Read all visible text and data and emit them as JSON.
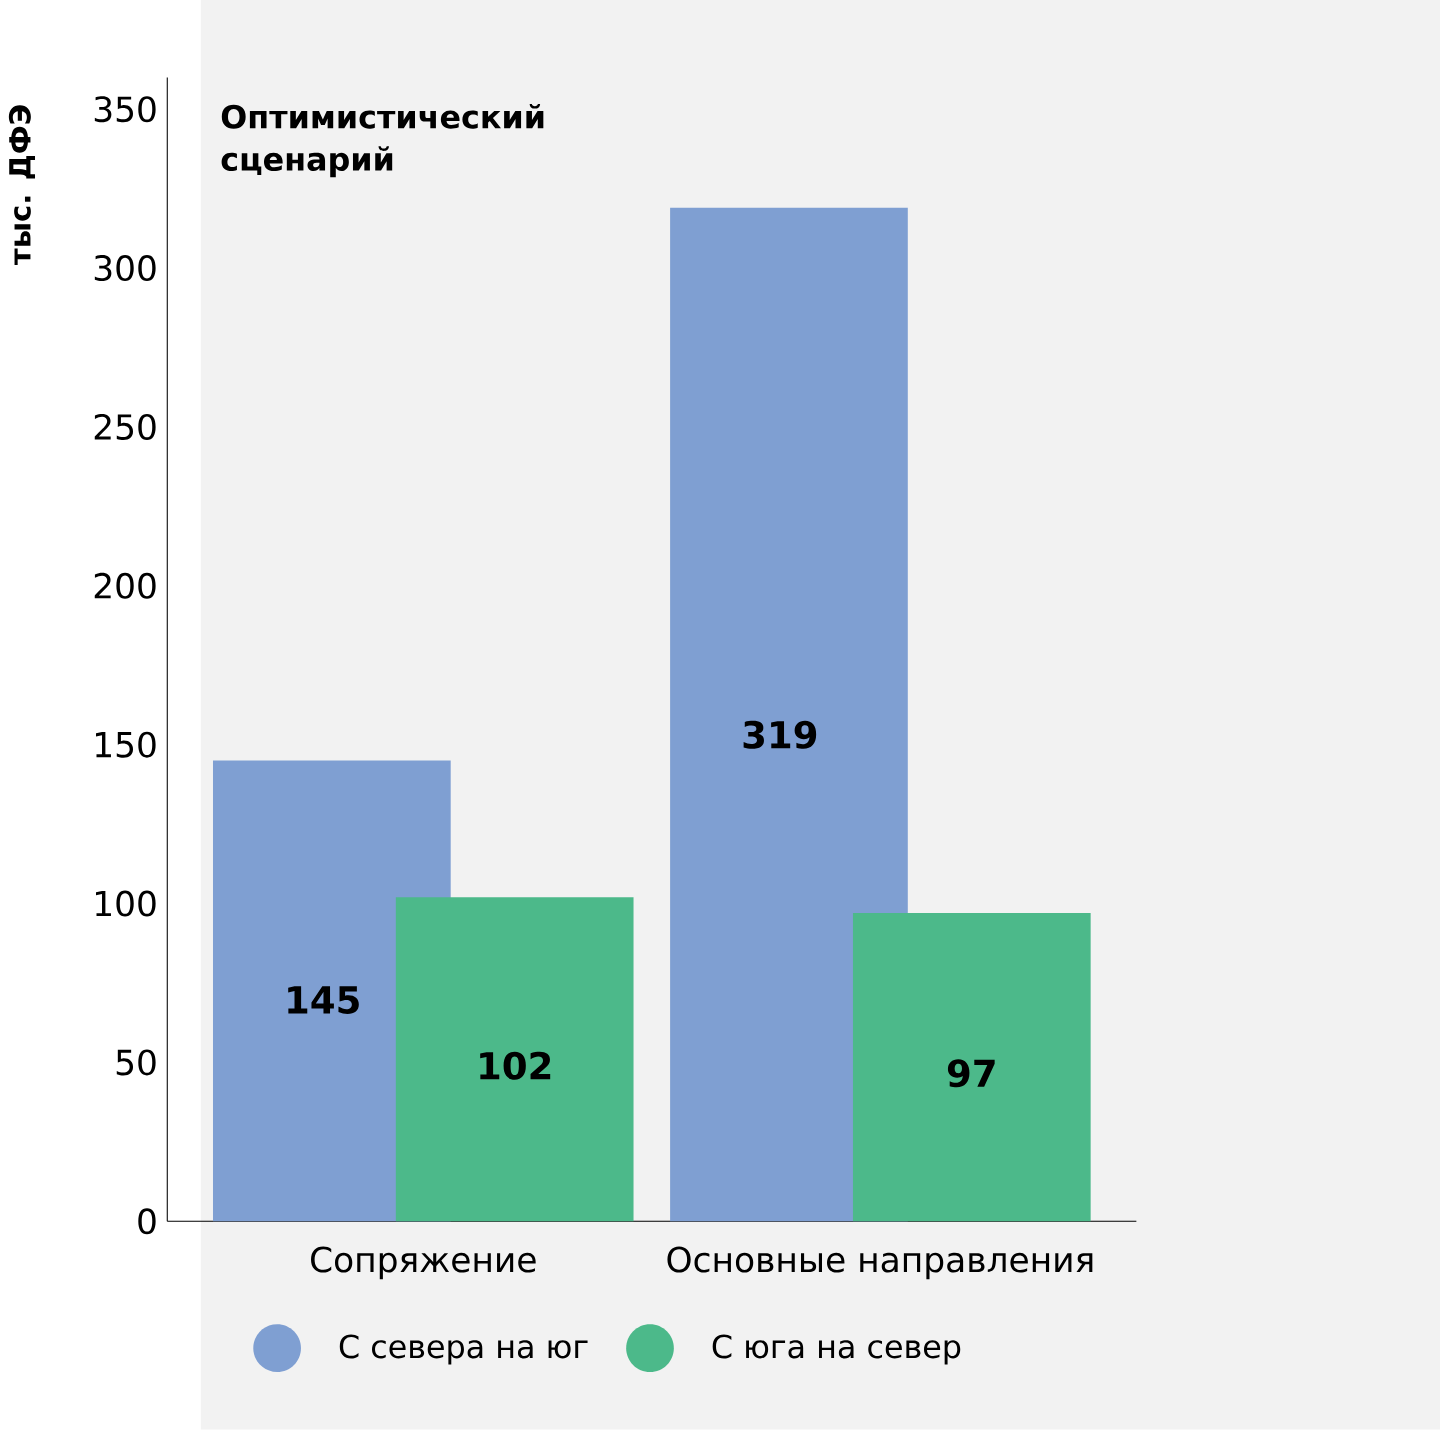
{
  "chart_data": {
    "type": "bar",
    "title": "Оптимистический сценарий",
    "ylabel": "тыс. ДФЭ",
    "categories": [
      "Сопряжение",
      "Основные направления"
    ],
    "series": [
      {
        "name": "С севера на юг",
        "color": "#7f9fd2",
        "values": [
          145,
          319
        ]
      },
      {
        "name": "С юга на север",
        "color": "#4cb98a",
        "values": [
          102,
          97
        ]
      }
    ],
    "ylim": [
      0,
      360
    ],
    "yticks": [
      0,
      50,
      100,
      150,
      200,
      250,
      300,
      350
    ],
    "data_labels": true,
    "grid": false,
    "legend": "bottom"
  }
}
